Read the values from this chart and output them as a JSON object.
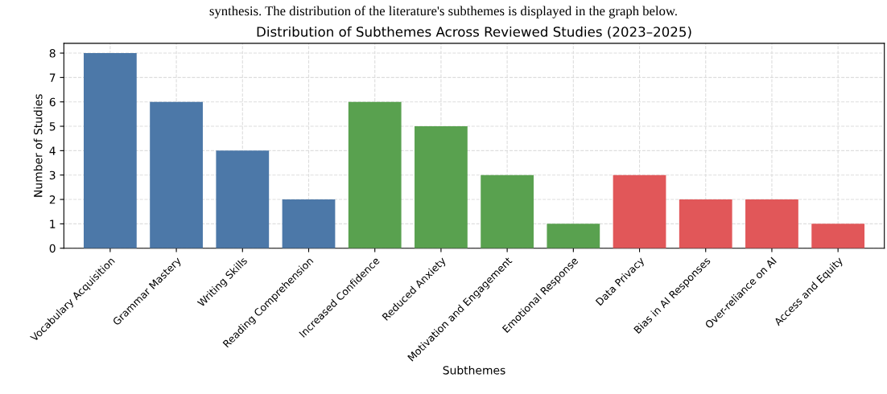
{
  "chart_data": {
    "type": "bar",
    "title": "Distribution of Subthemes Across Reviewed Studies (2023–2025)",
    "annotations": [
      "synthesis. The distribution of the literature's subthemes is displayed in the graph below."
    ],
    "xlabel": "Subthemes",
    "ylabel": "Number of Studies",
    "categories": [
      "Vocabulary Acquisition",
      "Grammar Mastery",
      "Writing Skills",
      "Reading Comprehension",
      "Increased Confidence",
      "Reduced Anxiety",
      "Motivation and Engagement",
      "Emotional Response",
      "Data Privacy",
      "Bias in AI Responses",
      "Over-reliance on AI",
      "Access and Equity"
    ],
    "values": [
      8,
      6,
      4,
      2,
      6,
      5,
      3,
      1,
      3,
      2,
      2,
      1
    ],
    "colors": [
      "#4c78a8",
      "#4c78a8",
      "#4c78a8",
      "#4c78a8",
      "#59a14f",
      "#59a14f",
      "#59a14f",
      "#59a14f",
      "#e15759",
      "#e15759",
      "#e15759",
      "#e15759"
    ],
    "ylim": [
      0,
      8.4
    ],
    "yticks": [
      0,
      1,
      2,
      3,
      4,
      5,
      6,
      7,
      8
    ],
    "grid": true
  }
}
